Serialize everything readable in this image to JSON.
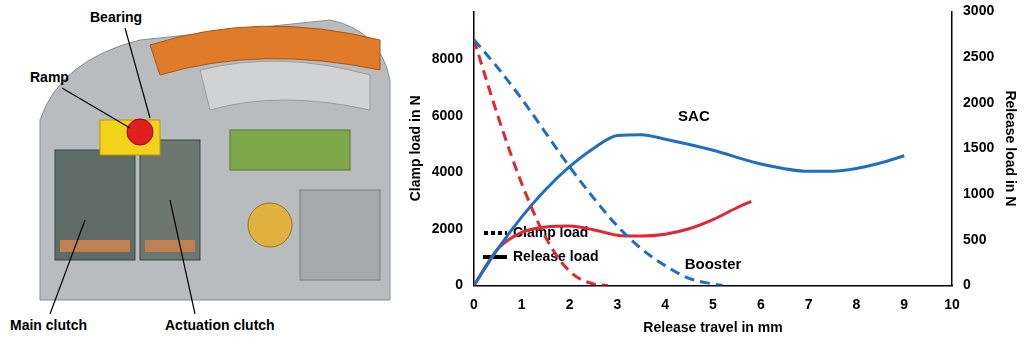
{
  "diagram": {
    "labels": [
      "Bearing",
      "Ramp",
      "Main clutch",
      "Actuation clutch"
    ]
  },
  "chart_data": {
    "type": "line",
    "x_label": "Release travel in mm",
    "y_label": "Clamp load in N",
    "y2_label": "Release load in N",
    "xlim": [
      0,
      10
    ],
    "xticks": [
      0,
      1,
      2,
      3,
      4,
      5,
      6,
      7,
      8,
      9,
      10
    ],
    "ylim": [
      0,
      9700
    ],
    "yticks": [
      0,
      2000,
      4000,
      6000,
      8000
    ],
    "y2lim": [
      0,
      3000
    ],
    "y2ticks": [
      0,
      500,
      1000,
      1500,
      2000,
      2500,
      3000
    ],
    "grid": false,
    "legend": "top-right",
    "series": [
      {
        "name": "Clamp load",
        "color": "#1f6fc0",
        "line_style": "dashed",
        "x": [
          0,
          0.5,
          1,
          1.5,
          2,
          2.5,
          3,
          3.5,
          4,
          4.5,
          5,
          5.2
        ],
        "values": [
          8700,
          7700,
          6600,
          5400,
          4200,
          3100,
          2100,
          1300,
          700,
          250,
          50,
          0
        ]
      },
      {
        "name": "Clamp load",
        "color": "#e3262f",
        "line_style": "dashed",
        "x": [
          0,
          0.5,
          1,
          1.5,
          2,
          2.5,
          2.8
        ],
        "values": [
          8700,
          6000,
          3600,
          1700,
          500,
          50,
          0
        ]
      },
      {
        "name": "Release load",
        "color": "#1f6fc0",
        "line_style": "solid",
        "axis": "y2",
        "x": [
          0,
          0.5,
          1,
          1.5,
          2,
          2.5,
          3,
          3.5,
          4,
          5,
          6,
          7,
          7.5,
          8,
          8.5,
          9
        ],
        "values": [
          0,
          400,
          750,
          1050,
          1300,
          1500,
          1640,
          1650,
          1600,
          1480,
          1330,
          1250,
          1250,
          1280,
          1340,
          1420
        ]
      },
      {
        "name": "Release load",
        "color": "#e3262f",
        "line_style": "solid",
        "axis": "y2",
        "x": [
          0,
          0.5,
          1,
          1.5,
          2,
          2.5,
          3,
          3.5,
          4,
          4.5,
          5,
          5.5,
          5.8
        ],
        "values": [
          0,
          400,
          580,
          640,
          650,
          610,
          550,
          540,
          560,
          620,
          720,
          850,
          920
        ]
      }
    ],
    "annotations": [
      {
        "text": "SAC",
        "x": 4.6,
        "y": 1850,
        "axis": "y2"
      },
      {
        "text": "Booster",
        "x": 5.0,
        "y": 230,
        "axis": "y2"
      }
    ]
  }
}
